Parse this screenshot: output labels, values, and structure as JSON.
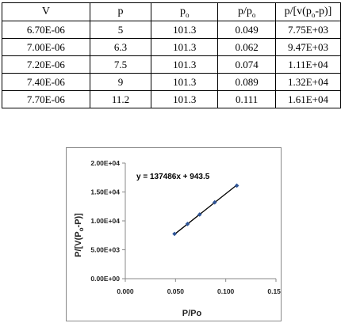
{
  "table": {
    "headers": {
      "v": "V",
      "p": "p",
      "p0_base": "p",
      "p0_sub": "o",
      "ratio_base": "p/p",
      "ratio_sub": "o",
      "bet_pre": "p/[v(p",
      "bet_sub": "o",
      "bet_post": "-p)]"
    },
    "rows": [
      [
        "6.70E-06",
        "5",
        "101.3",
        "0.049",
        "7.75E+03"
      ],
      [
        "7.00E-06",
        "6.3",
        "101.3",
        "0.062",
        "9.47E+03"
      ],
      [
        "7.20E-06",
        "7.5",
        "101.3",
        "0.074",
        "1.11E+04"
      ],
      [
        "7.40E-06",
        "9",
        "101.3",
        "0.089",
        "1.32E+04"
      ],
      [
        "7.70E-06",
        "11.2",
        "101.3",
        "0.111",
        "1.61E+04"
      ]
    ]
  },
  "chart_data": {
    "type": "scatter",
    "x": [
      0.049,
      0.062,
      0.074,
      0.089,
      0.111
    ],
    "y": [
      7750,
      9470,
      11100,
      13200,
      16100
    ],
    "xlabel": "P/Po",
    "ylabel_pre": "P/[V(P",
    "ylabel_sub": "o",
    "ylabel_post": "-P)]",
    "xlim": [
      0,
      0.15
    ],
    "ylim": [
      0,
      20000
    ],
    "xticks": [
      "0.000",
      "0.050",
      "0.100",
      "0.150"
    ],
    "yticks": [
      "0.00E+00",
      "5.00E+03",
      "1.00E+04",
      "1.50E+04",
      "2.00E+04"
    ],
    "trendline": {
      "slope": 137486,
      "intercept": 943.5,
      "equation": "y = 137486x + 943.5"
    },
    "marker_color": "#2f5597",
    "line_color": "#000000",
    "grid": false,
    "legend": "none"
  }
}
